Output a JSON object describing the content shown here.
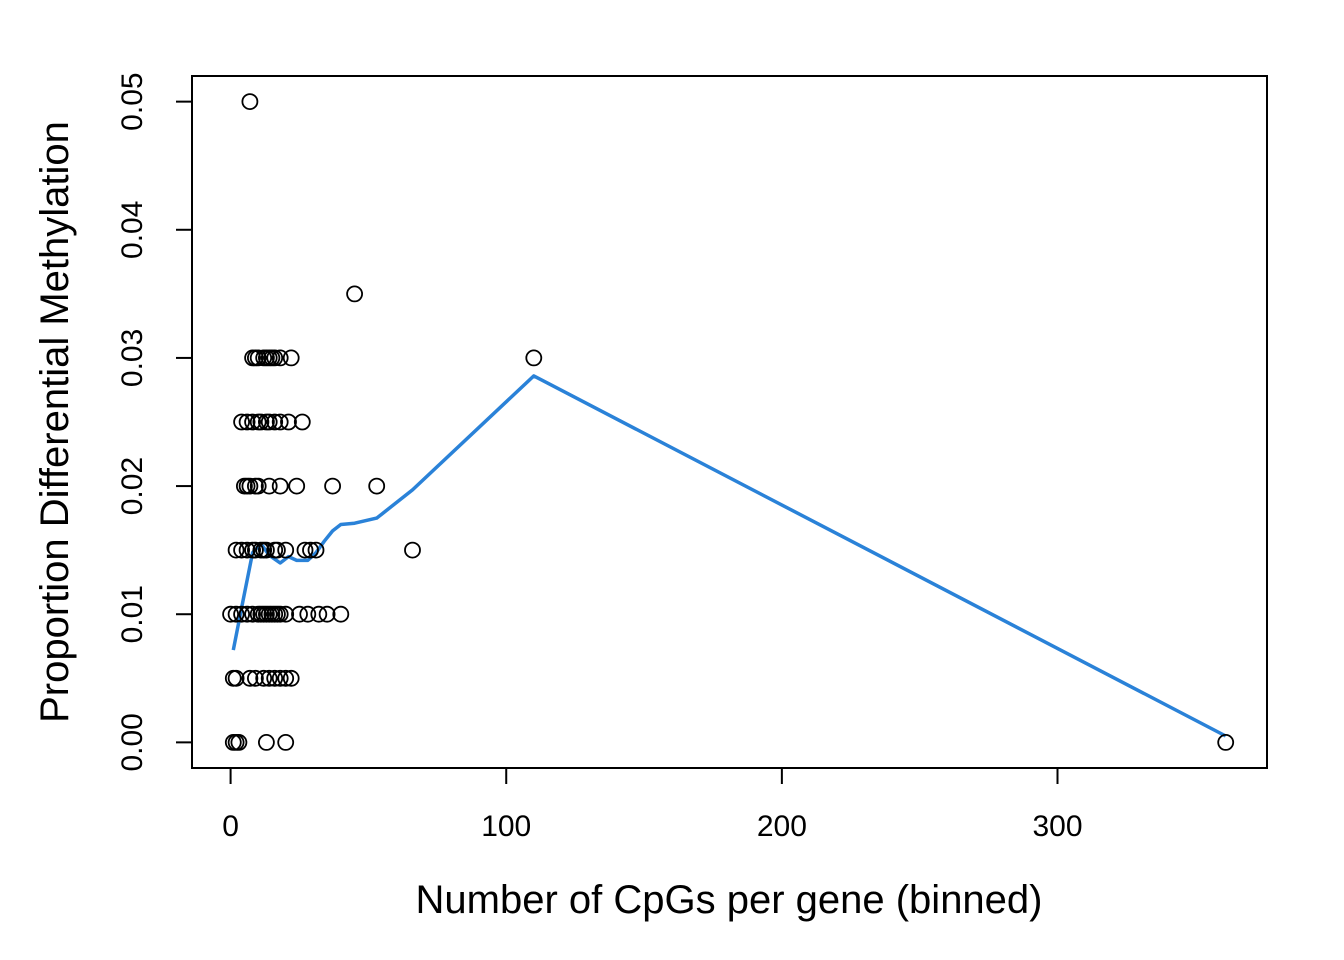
{
  "chart_data": {
    "type": "scatter",
    "title": "",
    "xlabel": "Number of CpGs per gene (binned)",
    "ylabel": "Proportion Differential Methylation",
    "xlim": [
      -14,
      376
    ],
    "ylim": [
      -0.002,
      0.052
    ],
    "xticks": [
      0,
      100,
      200,
      300
    ],
    "yticks": [
      0.0,
      0.01,
      0.02,
      0.03,
      0.04,
      0.05
    ],
    "xtick_labels": [
      "0",
      "100",
      "200",
      "300"
    ],
    "ytick_labels": [
      "0.00",
      "0.01",
      "0.02",
      "0.03",
      "0.04",
      "0.05"
    ],
    "grid": false,
    "points": {
      "x": [
        7,
        45,
        110,
        8,
        9,
        10,
        12,
        13,
        14,
        15,
        16,
        18,
        22,
        4,
        6,
        8,
        10,
        11,
        13,
        14,
        16,
        18,
        21,
        26,
        5,
        6,
        7,
        9,
        10,
        14,
        18,
        24,
        37,
        53,
        2,
        4,
        6,
        8,
        9,
        11,
        12,
        13,
        16,
        17,
        20,
        27,
        29,
        31,
        66,
        0,
        2,
        4,
        6,
        8,
        10,
        11,
        12,
        13,
        14,
        15,
        16,
        17,
        18,
        20,
        25,
        28,
        32,
        35,
        40,
        1,
        2,
        7,
        9,
        12,
        14,
        16,
        18,
        20,
        22,
        1,
        2,
        3,
        13,
        20,
        361
      ],
      "y": [
        0.05,
        0.035,
        0.03,
        0.03,
        0.03,
        0.03,
        0.03,
        0.03,
        0.03,
        0.03,
        0.03,
        0.03,
        0.03,
        0.025,
        0.025,
        0.025,
        0.025,
        0.025,
        0.025,
        0.025,
        0.025,
        0.025,
        0.025,
        0.025,
        0.02,
        0.02,
        0.02,
        0.02,
        0.02,
        0.02,
        0.02,
        0.02,
        0.02,
        0.02,
        0.015,
        0.015,
        0.015,
        0.015,
        0.015,
        0.015,
        0.015,
        0.015,
        0.015,
        0.015,
        0.015,
        0.015,
        0.015,
        0.015,
        0.015,
        0.01,
        0.01,
        0.01,
        0.01,
        0.01,
        0.01,
        0.01,
        0.01,
        0.01,
        0.01,
        0.01,
        0.01,
        0.01,
        0.01,
        0.01,
        0.01,
        0.01,
        0.01,
        0.01,
        0.01,
        0.005,
        0.005,
        0.005,
        0.005,
        0.005,
        0.005,
        0.005,
        0.005,
        0.005,
        0.005,
        0.0,
        0.0,
        0.0,
        0.0,
        0.0,
        0.0
      ],
      "color": "#000000"
    },
    "line": {
      "x": [
        1,
        4,
        8,
        11,
        14,
        18,
        21,
        24,
        28,
        31,
        34,
        37,
        40,
        45,
        53,
        66,
        110,
        361
      ],
      "y": [
        0.0072,
        0.0105,
        0.0148,
        0.0155,
        0.0146,
        0.014,
        0.0145,
        0.0142,
        0.0142,
        0.0148,
        0.0157,
        0.0165,
        0.017,
        0.0171,
        0.0175,
        0.0197,
        0.0286,
        0.0005
      ],
      "color": "#2a82d8"
    }
  }
}
